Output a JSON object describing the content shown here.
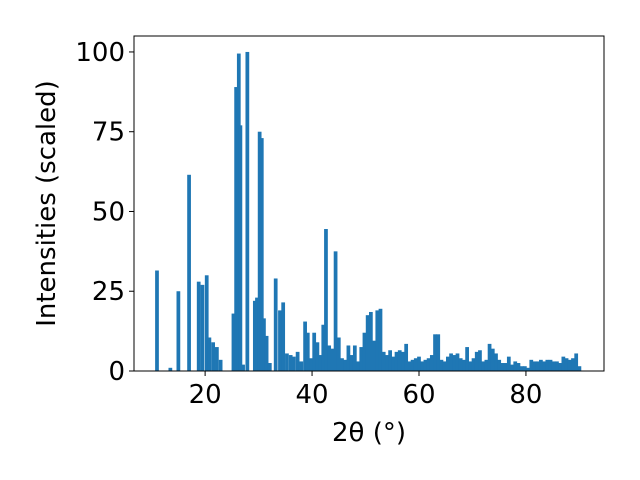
{
  "chart_data": {
    "type": "bar",
    "title": "",
    "xlabel": "2θ (°)",
    "ylabel": "Intensities (scaled)",
    "xlim": [
      6.7,
      94.6
    ],
    "ylim": [
      0,
      105
    ],
    "x_ticks": [
      20,
      40,
      60,
      80
    ],
    "y_ticks": [
      0,
      25,
      50,
      75,
      100
    ],
    "grid": false,
    "bar_color": "#1f77b4",
    "bar_width": 0.7,
    "x": [
      11.0,
      13.5,
      15.0,
      17.0,
      18.8,
      19.5,
      20.3,
      20.8,
      21.5,
      22.2,
      22.9,
      25.3,
      25.8,
      26.3,
      26.6,
      27.1,
      27.9,
      29.3,
      29.7,
      30.2,
      30.6,
      31.0,
      31.5,
      32.1,
      33.2,
      34.0,
      34.6,
      35.3,
      36.0,
      36.6,
      37.3,
      38.0,
      38.7,
      39.2,
      39.8,
      40.4,
      41.0,
      41.6,
      42.1,
      42.6,
      43.2,
      43.8,
      44.4,
      45.0,
      45.6,
      46.2,
      46.8,
      47.4,
      48.0,
      48.6,
      49.2,
      49.8,
      50.4,
      51.0,
      51.6,
      52.2,
      52.8,
      53.4,
      54.0,
      54.6,
      55.2,
      55.8,
      56.4,
      57.0,
      57.6,
      58.2,
      58.8,
      59.4,
      60.0,
      60.6,
      61.2,
      61.8,
      62.4,
      63.0,
      63.6,
      64.2,
      64.8,
      65.4,
      66.0,
      66.6,
      67.2,
      67.8,
      68.4,
      69.0,
      69.6,
      70.2,
      70.8,
      71.4,
      72.0,
      72.6,
      73.2,
      73.8,
      74.4,
      75.0,
      75.6,
      76.2,
      76.8,
      77.4,
      78.0,
      78.6,
      79.2,
      79.8,
      80.4,
      81.0,
      81.6,
      82.2,
      82.8,
      83.4,
      84.0,
      84.6,
      85.2,
      85.8,
      86.4,
      87.0,
      87.6,
      88.2,
      88.8,
      89.4,
      90.0
    ],
    "values": [
      31.5,
      1.0,
      25.0,
      61.5,
      28.0,
      27.0,
      30.0,
      10.5,
      9.0,
      7.5,
      3.5,
      18.0,
      89.0,
      99.5,
      77.0,
      2.0,
      100.0,
      22.0,
      23.0,
      75.0,
      73.0,
      16.5,
      11.0,
      2.5,
      29.0,
      19.0,
      21.5,
      5.5,
      5.0,
      4.5,
      6.0,
      3.0,
      15.5,
      12.0,
      4.0,
      12.0,
      9.0,
      5.0,
      14.5,
      44.5,
      8.0,
      7.0,
      37.5,
      10.5,
      4.0,
      3.5,
      8.0,
      5.0,
      8.0,
      3.0,
      7.5,
      12.0,
      17.5,
      18.5,
      9.5,
      19.0,
      19.5,
      6.0,
      5.0,
      6.5,
      4.5,
      6.0,
      6.5,
      6.0,
      8.5,
      3.0,
      3.5,
      4.0,
      4.5,
      3.0,
      3.5,
      4.0,
      5.0,
      11.5,
      11.5,
      3.5,
      3.0,
      4.5,
      5.5,
      5.0,
      5.5,
      4.0,
      3.5,
      7.5,
      3.0,
      4.0,
      6.0,
      6.5,
      3.0,
      3.5,
      8.5,
      7.0,
      5.5,
      3.5,
      2.5,
      2.5,
      4.5,
      2.0,
      3.0,
      2.5,
      1.5,
      1.5,
      1.0,
      3.5,
      3.0,
      3.0,
      3.5,
      3.0,
      3.5,
      3.5,
      3.0,
      3.0,
      2.5,
      4.5,
      4.0,
      3.5,
      4.0,
      5.5,
      1.5
    ]
  }
}
